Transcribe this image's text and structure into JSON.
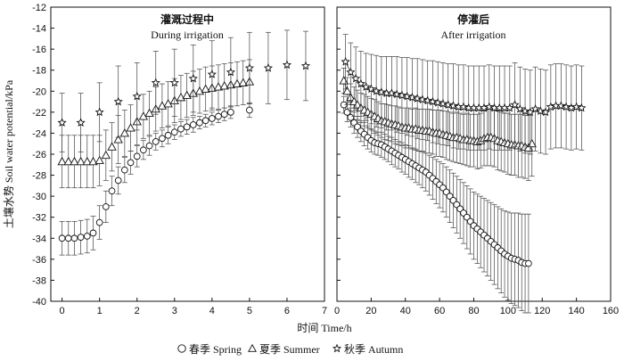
{
  "chart_data": {
    "type": "scatter",
    "ylabel": "土壤水势 Soil water potential/kPa",
    "xlabel": "时间 Time/h",
    "ylim": [
      -40,
      -12
    ],
    "yticks": [
      -12,
      -14,
      -16,
      -18,
      -20,
      -22,
      -24,
      -26,
      -28,
      -30,
      -32,
      -34,
      -36,
      -38,
      -40
    ],
    "legend": [
      {
        "key": "spring",
        "marker": "circle",
        "label": "春季 Spring"
      },
      {
        "key": "summer",
        "marker": "triangle",
        "label": "夏季 Summer"
      },
      {
        "key": "autumn",
        "marker": "star",
        "label": "秋季 Autumn"
      }
    ],
    "panels": [
      {
        "id": "during",
        "title_cn": "灌溉过程中",
        "title_en": "During irrigation",
        "xlim": [
          -0.3,
          7
        ],
        "xticks": [
          0,
          1,
          2,
          3,
          4,
          5,
          6,
          7
        ],
        "series": [
          {
            "name": "spring",
            "x": [
              0,
              0.17,
              0.33,
              0.5,
              0.67,
              0.83,
              1.0,
              1.17,
              1.33,
              1.5,
              1.67,
              1.83,
              2.0,
              2.17,
              2.33,
              2.5,
              2.67,
              2.83,
              3.0,
              3.17,
              3.33,
              3.5,
              3.67,
              3.83,
              4.0,
              4.17,
              4.33,
              4.5,
              5.0
            ],
            "y": [
              -34.0,
              -34.0,
              -34.0,
              -33.9,
              -33.8,
              -33.5,
              -32.5,
              -31.0,
              -29.5,
              -28.5,
              -27.5,
              -26.8,
              -26.2,
              -25.6,
              -25.2,
              -24.8,
              -24.5,
              -24.2,
              -23.9,
              -23.6,
              -23.4,
              -23.2,
              -23.0,
              -22.8,
              -22.6,
              -22.4,
              -22.2,
              -22.0,
              -21.8
            ],
            "err": [
              1.6,
              1.6,
              1.6,
              1.6,
              1.6,
              1.6,
              1.6,
              1.5,
              1.4,
              1.3,
              1.2,
              1.1,
              1.0,
              0.9,
              0.9,
              0.8,
              0.8,
              0.8,
              0.7,
              0.7,
              0.7,
              0.7,
              0.6,
              0.6,
              0.6,
              0.6,
              0.6,
              0.6,
              0.7
            ]
          },
          {
            "name": "summer",
            "x": [
              0,
              0.17,
              0.33,
              0.5,
              0.67,
              0.83,
              1.0,
              1.17,
              1.33,
              1.5,
              1.67,
              1.83,
              2.0,
              2.17,
              2.33,
              2.5,
              2.67,
              2.83,
              3.0,
              3.17,
              3.33,
              3.5,
              3.67,
              3.83,
              4.0,
              4.17,
              4.33,
              4.5,
              4.67,
              4.83,
              5.0
            ],
            "y": [
              -26.7,
              -26.7,
              -26.7,
              -26.7,
              -26.7,
              -26.7,
              -26.6,
              -26.1,
              -25.3,
              -24.6,
              -24.0,
              -23.5,
              -22.9,
              -22.4,
              -22.1,
              -21.7,
              -21.4,
              -21.2,
              -20.9,
              -20.6,
              -20.4,
              -20.2,
              -20.0,
              -19.8,
              -19.7,
              -19.6,
              -19.5,
              -19.4,
              -19.3,
              -19.2,
              -19.1
            ],
            "err": [
              2.5,
              2.5,
              2.5,
              2.5,
              2.5,
              2.5,
              2.4,
              2.4,
              2.3,
              2.3,
              2.2,
              2.2,
              2.2,
              2.1,
              2.1,
              2.1,
              2.1,
              2.1,
              2.1,
              2.1,
              2.1,
              2.1,
              2.1,
              2.1,
              2.1,
              2.1,
              2.1,
              2.1,
              2.1,
              2.1,
              2.1
            ]
          },
          {
            "name": "autumn",
            "x": [
              0,
              0.5,
              1.0,
              1.5,
              2.0,
              2.5,
              3.0,
              3.5,
              4.0,
              4.5,
              5.0,
              5.5,
              6.0,
              6.5
            ],
            "y": [
              -23.0,
              -23.0,
              -22.0,
              -21.0,
              -20.5,
              -19.2,
              -19.2,
              -18.8,
              -18.4,
              -18.2,
              -17.8,
              -17.8,
              -17.5,
              -17.6
            ],
            "err": [
              2.8,
              2.8,
              2.8,
              3.4,
              3.2,
              3.0,
              3.2,
              3.2,
              3.2,
              3.3,
              3.4,
              3.4,
              3.3,
              3.3
            ]
          }
        ]
      },
      {
        "id": "after",
        "title_cn": "停灌后",
        "title_en": "After irrigation",
        "xlim": [
          0,
          160
        ],
        "xticks": [
          0,
          20,
          40,
          60,
          80,
          100,
          120,
          140,
          160
        ],
        "series": [
          {
            "name": "spring",
            "x": [
              4,
              6,
              8,
              10,
              12,
              14,
              16,
              18,
              20,
              22,
              24,
              26,
              28,
              30,
              32,
              34,
              36,
              38,
              40,
              42,
              44,
              46,
              48,
              50,
              52,
              54,
              56,
              58,
              60,
              62,
              64,
              66,
              68,
              70,
              72,
              74,
              76,
              78,
              80,
              82,
              84,
              86,
              88,
              90,
              92,
              94,
              96,
              98,
              100,
              102,
              104,
              106,
              108,
              110,
              112
            ],
            "y": [
              -21.3,
              -22.0,
              -22.5,
              -23.0,
              -23.4,
              -23.8,
              -24.1,
              -24.4,
              -24.7,
              -24.9,
              -25.0,
              -25.1,
              -25.3,
              -25.5,
              -25.7,
              -25.9,
              -26.1,
              -26.3,
              -26.5,
              -26.7,
              -26.9,
              -27.1,
              -27.3,
              -27.5,
              -27.7,
              -28.0,
              -28.3,
              -28.6,
              -28.9,
              -29.2,
              -29.6,
              -30.0,
              -30.4,
              -30.8,
              -31.2,
              -31.6,
              -32.0,
              -32.4,
              -32.8,
              -33.1,
              -33.4,
              -33.7,
              -34.0,
              -34.3,
              -34.6,
              -34.9,
              -35.2,
              -35.5,
              -35.7,
              -35.9,
              -36.0,
              -36.1,
              -36.3,
              -36.4,
              -36.4
            ],
            "err": [
              0.8,
              0.9,
              0.9,
              1.0,
              1.0,
              1.0,
              1.1,
              1.1,
              1.1,
              1.1,
              1.1,
              1.2,
              1.2,
              1.2,
              1.3,
              1.3,
              1.3,
              1.4,
              1.4,
              1.5,
              1.5,
              1.6,
              1.6,
              1.7,
              1.8,
              1.9,
              2.0,
              2.1,
              2.2,
              2.3,
              2.4,
              2.5,
              2.6,
              2.7,
              2.8,
              2.9,
              3.0,
              3.1,
              3.2,
              3.3,
              3.4,
              3.5,
              3.6,
              3.7,
              3.8,
              3.9,
              4.0,
              4.1,
              4.2,
              4.3,
              4.4,
              4.5,
              4.6,
              4.7,
              4.7
            ]
          },
          {
            "name": "summer",
            "x": [
              4,
              6,
              8,
              10,
              12,
              14,
              16,
              18,
              20,
              22,
              24,
              26,
              28,
              30,
              32,
              34,
              36,
              38,
              40,
              42,
              44,
              46,
              48,
              50,
              52,
              54,
              56,
              58,
              60,
              62,
              64,
              66,
              68,
              70,
              72,
              74,
              76,
              78,
              80,
              82,
              84,
              86,
              88,
              90,
              92,
              94,
              96,
              98,
              100,
              102,
              104,
              106,
              108,
              110,
              112,
              114
            ],
            "y": [
              -19.0,
              -20.0,
              -20.6,
              -21.0,
              -21.3,
              -21.6,
              -21.8,
              -22.0,
              -22.2,
              -22.4,
              -22.6,
              -22.8,
              -22.9,
              -23.0,
              -23.1,
              -23.2,
              -23.3,
              -23.4,
              -23.5,
              -23.5,
              -23.6,
              -23.6,
              -23.7,
              -23.7,
              -23.8,
              -23.8,
              -23.9,
              -24.0,
              -24.0,
              -24.1,
              -24.2,
              -24.3,
              -24.4,
              -24.4,
              -24.5,
              -24.6,
              -24.6,
              -24.7,
              -24.7,
              -24.8,
              -24.7,
              -24.5,
              -24.4,
              -24.4,
              -24.5,
              -24.7,
              -24.8,
              -24.9,
              -25.0,
              -25.1,
              -25.1,
              -25.2,
              -25.2,
              -25.3,
              -25.4,
              -25.0
            ],
            "err": [
              1.2,
              1.3,
              1.3,
              1.4,
              1.4,
              1.4,
              1.5,
              1.5,
              1.5,
              1.6,
              1.6,
              1.6,
              1.7,
              1.7,
              1.7,
              1.8,
              1.8,
              1.8,
              1.9,
              1.9,
              1.9,
              2.0,
              2.0,
              2.0,
              2.1,
              2.1,
              2.1,
              2.2,
              2.2,
              2.2,
              2.3,
              2.3,
              2.3,
              2.4,
              2.4,
              2.4,
              2.5,
              2.5,
              2.5,
              2.6,
              2.6,
              2.6,
              2.7,
              2.7,
              2.7,
              2.8,
              2.8,
              2.8,
              2.9,
              2.9,
              2.9,
              3.0,
              3.0,
              3.0,
              3.1,
              3.1
            ]
          },
          {
            "name": "autumn",
            "x": [
              5,
              8,
              11,
              14,
              17,
              20,
              23,
              26,
              29,
              32,
              35,
              38,
              41,
              44,
              47,
              50,
              53,
              56,
              59,
              62,
              65,
              68,
              71,
              74,
              77,
              80,
              83,
              86,
              89,
              92,
              95,
              98,
              101,
              104,
              107,
              110,
              113,
              116,
              119,
              122,
              125,
              128,
              131,
              134,
              137,
              140,
              143
            ],
            "y": [
              -17.2,
              -18.2,
              -18.8,
              -19.3,
              -19.6,
              -19.8,
              -20.0,
              -20.1,
              -20.2,
              -20.2,
              -20.3,
              -20.4,
              -20.5,
              -20.6,
              -20.7,
              -20.8,
              -20.9,
              -21.0,
              -21.1,
              -21.2,
              -21.3,
              -21.4,
              -21.5,
              -21.5,
              -21.6,
              -21.6,
              -21.6,
              -21.6,
              -21.5,
              -21.6,
              -21.6,
              -21.6,
              -21.6,
              -21.3,
              -21.7,
              -21.9,
              -22.0,
              -21.7,
              -21.9,
              -22.0,
              -21.5,
              -21.4,
              -21.4,
              -21.5,
              -21.6,
              -21.5,
              -21.6
            ],
            "err": [
              2.6,
              2.8,
              3.0,
              3.1,
              3.2,
              3.3,
              3.4,
              3.4,
              3.5,
              3.5,
              3.6,
              3.6,
              3.7,
              3.7,
              3.8,
              3.8,
              3.8,
              3.9,
              3.9,
              3.9,
              3.9,
              4.0,
              4.0,
              4.0,
              4.0,
              4.0,
              4.0,
              4.0,
              4.0,
              4.0,
              4.0,
              4.0,
              4.0,
              4.0,
              4.0,
              4.0,
              4.0,
              4.0,
              4.0,
              4.0,
              4.0,
              4.0,
              4.0,
              4.0,
              4.0,
              4.0,
              4.0
            ]
          }
        ]
      }
    ]
  }
}
